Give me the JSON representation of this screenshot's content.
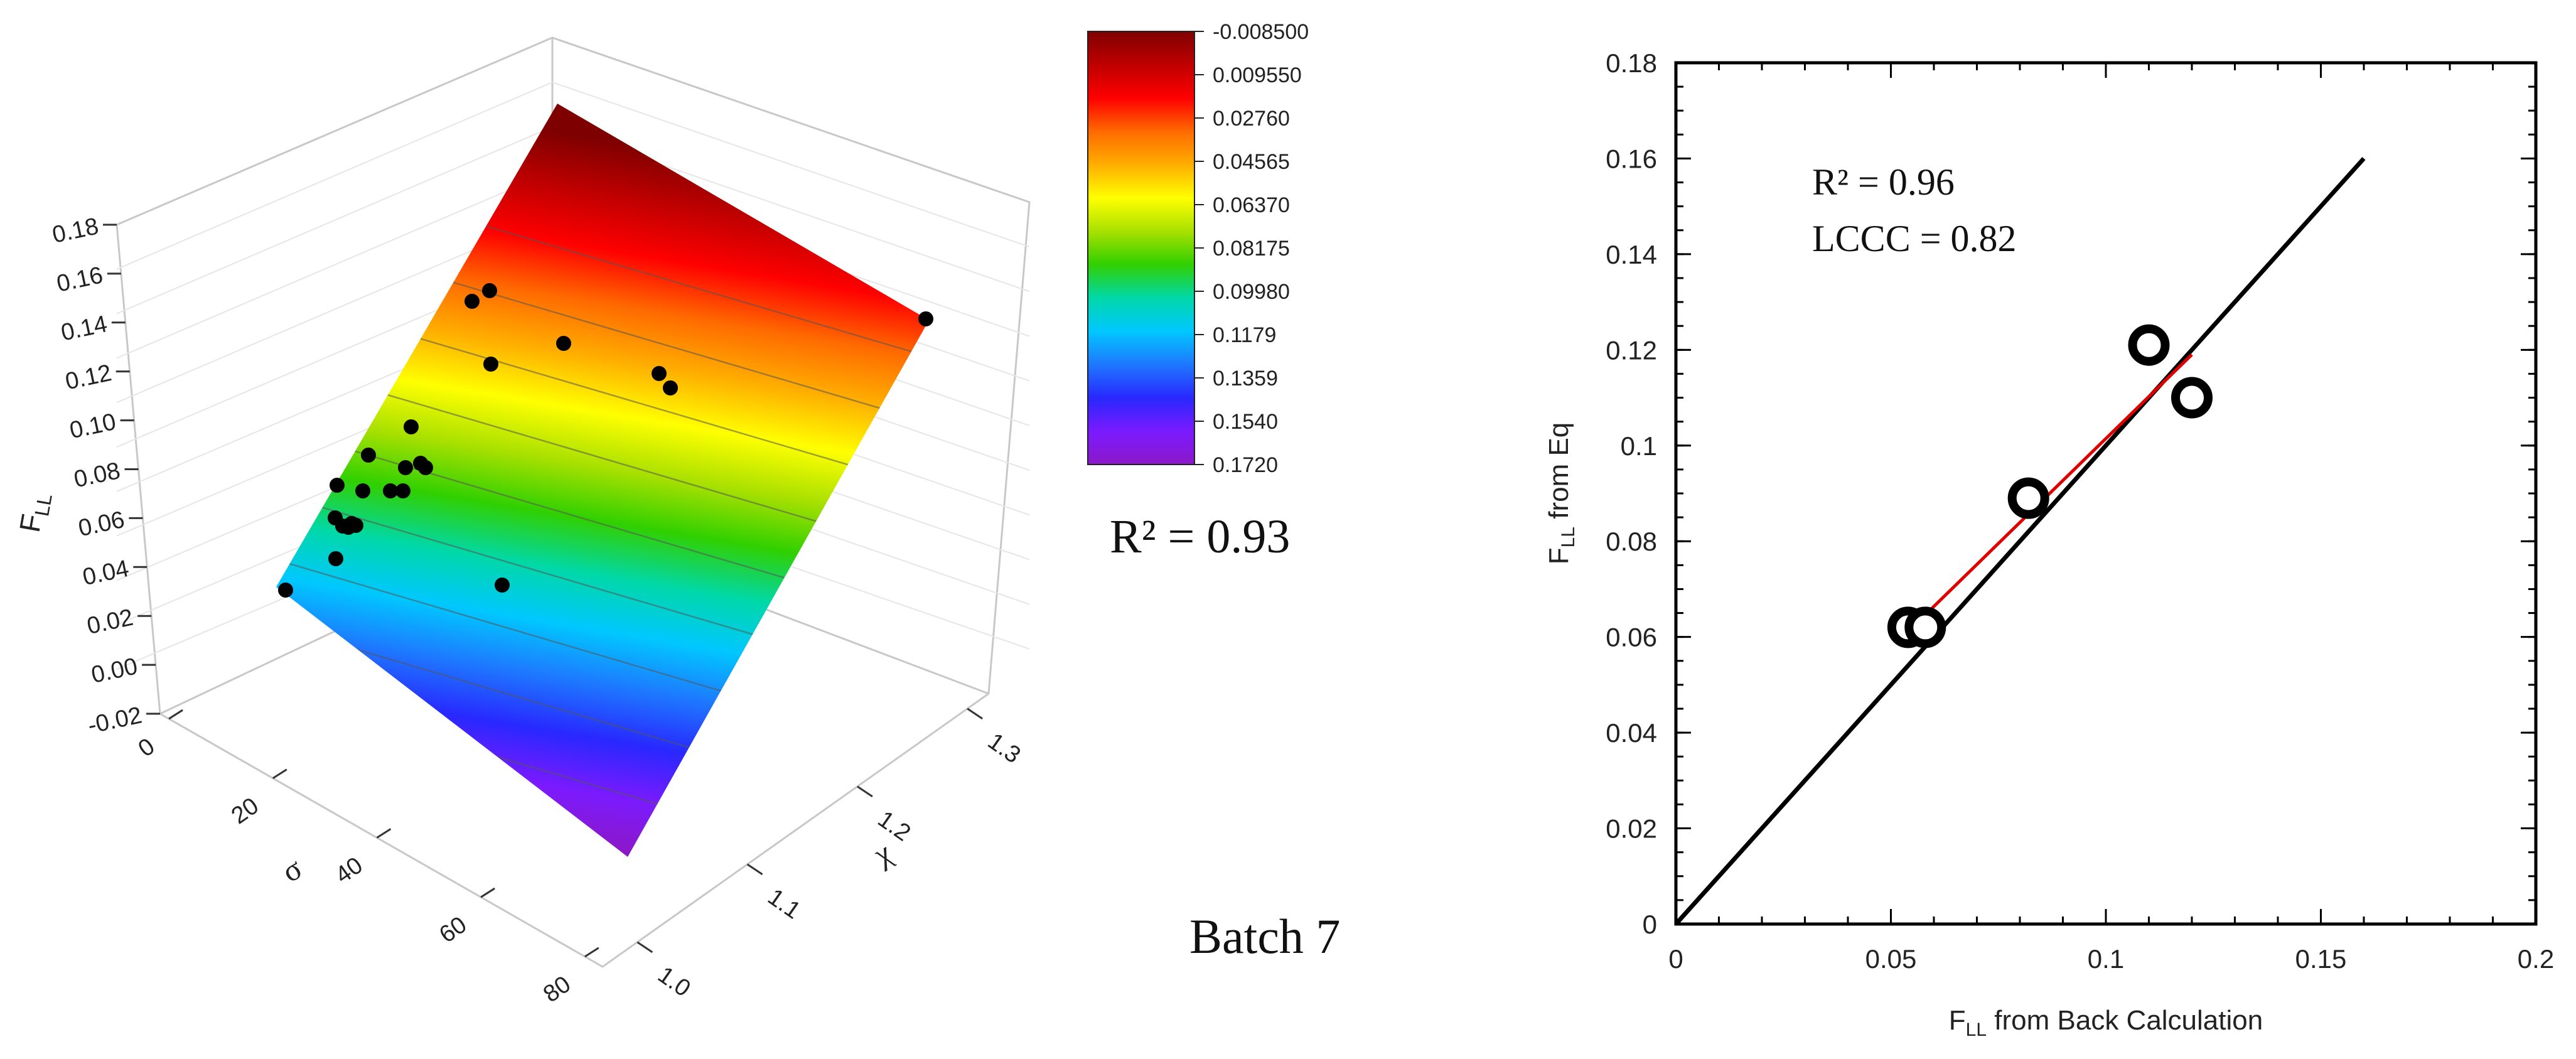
{
  "surface": {
    "zlabel_main": "F",
    "zlabel_sub": "LL",
    "xlabel": "σ",
    "ylabel": "χ",
    "z_ticks": [
      "-0.02",
      "0.00",
      "0.02",
      "0.04",
      "0.06",
      "0.08",
      "0.10",
      "0.12",
      "0.14",
      "0.16",
      "0.18"
    ],
    "x_ticks": [
      "0",
      "20",
      "40",
      "60",
      "80"
    ],
    "y_ticks": [
      "1.0",
      "1.1",
      "1.2",
      "1.3"
    ],
    "colors": [
      "#7f0000",
      "#c00000",
      "#ff0000",
      "#ff6a00",
      "#ffae00",
      "#ffff00",
      "#a8e000",
      "#30d000",
      "#00d8a8",
      "#00c8ff",
      "#1e78ff",
      "#2828ff",
      "#7a1aff",
      "#8c18c8"
    ],
    "colorbar_labels": [
      "-0.008500",
      "0.009550",
      "0.02760",
      "0.04565",
      "0.06370",
      "0.08175",
      "0.09980",
      "0.1179",
      "0.1359",
      "0.1540",
      "0.1720"
    ],
    "colorbar_stops": [
      "#8c18c8",
      "#7a1aff",
      "#2828ff",
      "#1e78ff",
      "#00c8ff",
      "#00d8a8",
      "#30d000",
      "#a8e000",
      "#ffff00",
      "#ffae00",
      "#ff6a00",
      "#ff0000",
      "#c00000",
      "#7f0000"
    ],
    "r2_text": "R² = 0.93",
    "batch_text": "Batch 7"
  },
  "chart_data": [
    {
      "type": "scatter",
      "title": "",
      "xlabel_main": "F",
      "xlabel_sub": "LL",
      "xlabel_rest": " from Back Calculation",
      "ylabel_main": "F",
      "ylabel_sub": "LL",
      "ylabel_rest": " from Eq",
      "xlim": [
        0,
        0.2
      ],
      "ylim": [
        0,
        0.18
      ],
      "x_ticks": [
        0,
        0.05,
        0.1,
        0.15,
        0.2
      ],
      "x_tick_labels": [
        "0",
        "0.05",
        "0.1",
        "0.15",
        "0.2"
      ],
      "y_ticks": [
        0,
        0.02,
        0.04,
        0.06,
        0.08,
        0.1,
        0.12,
        0.14,
        0.16,
        0.18
      ],
      "y_tick_labels": [
        "0",
        "0.02",
        "0.04",
        "0.06",
        "0.08",
        "0.1",
        "0.12",
        "0.14",
        "0.16",
        "0.18"
      ],
      "points": [
        {
          "x": 0.054,
          "y": 0.062
        },
        {
          "x": 0.058,
          "y": 0.062
        },
        {
          "x": 0.082,
          "y": 0.089
        },
        {
          "x": 0.11,
          "y": 0.121
        },
        {
          "x": 0.12,
          "y": 0.11
        }
      ],
      "identity_line": {
        "x": [
          0,
          0.16
        ],
        "y": [
          0,
          0.16
        ],
        "color": "#000000"
      },
      "fit_line": {
        "x": [
          0.055,
          0.12
        ],
        "y": [
          0.062,
          0.119
        ],
        "color": "#e00000"
      },
      "annotations": [
        "R² = 0.96",
        "LCCC = 0.82"
      ]
    }
  ]
}
